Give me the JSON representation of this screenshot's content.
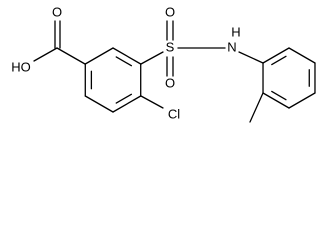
{
  "atoms": [
    "HO",
    "O",
    "S",
    "O",
    "O",
    "N",
    "H",
    "Cl"
  ]
}
